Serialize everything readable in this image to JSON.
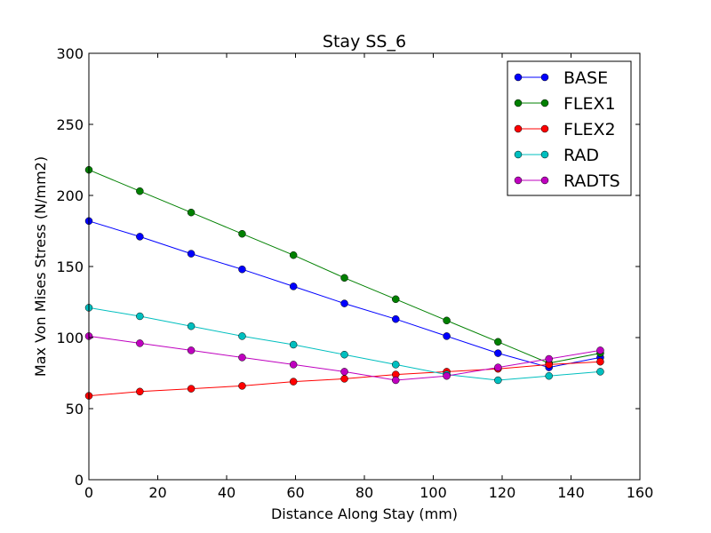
{
  "chart_data": {
    "type": "line",
    "title": "Stay SS_6",
    "xlabel": "Distance Along Stay (mm)",
    "ylabel": "Max Von Mises Stress (N/mm2)",
    "xlim": [
      0,
      160
    ],
    "ylim": [
      0,
      300
    ],
    "xticks": [
      0,
      20,
      40,
      60,
      80,
      100,
      120,
      140,
      160
    ],
    "yticks": [
      0,
      50,
      100,
      150,
      200,
      250,
      300
    ],
    "grid": false,
    "legend_position": "top-right",
    "x": [
      0,
      14.8,
      29.7,
      44.5,
      59.4,
      74.2,
      89.1,
      103.9,
      118.8,
      133.6,
      148.5
    ],
    "series": [
      {
        "name": "BASE",
        "color": "#0000ff",
        "values": [
          182,
          171,
          159,
          148,
          136,
          124,
          113,
          101,
          89,
          79,
          86
        ]
      },
      {
        "name": "FLEX1",
        "color": "#008000",
        "values": [
          218,
          203,
          188,
          173,
          158,
          142,
          127,
          112,
          97,
          82,
          89
        ]
      },
      {
        "name": "FLEX2",
        "color": "#ff0000",
        "values": [
          59,
          62,
          64,
          66,
          69,
          71,
          74,
          76,
          78,
          81,
          83
        ]
      },
      {
        "name": "RAD",
        "color": "#00bfbf",
        "values": [
          121,
          115,
          108,
          101,
          95,
          88,
          81,
          74,
          70,
          73,
          76
        ]
      },
      {
        "name": "RADTS",
        "color": "#bf00bf",
        "values": [
          101,
          96,
          91,
          86,
          81,
          76,
          70,
          73,
          79,
          85,
          91
        ]
      }
    ]
  }
}
